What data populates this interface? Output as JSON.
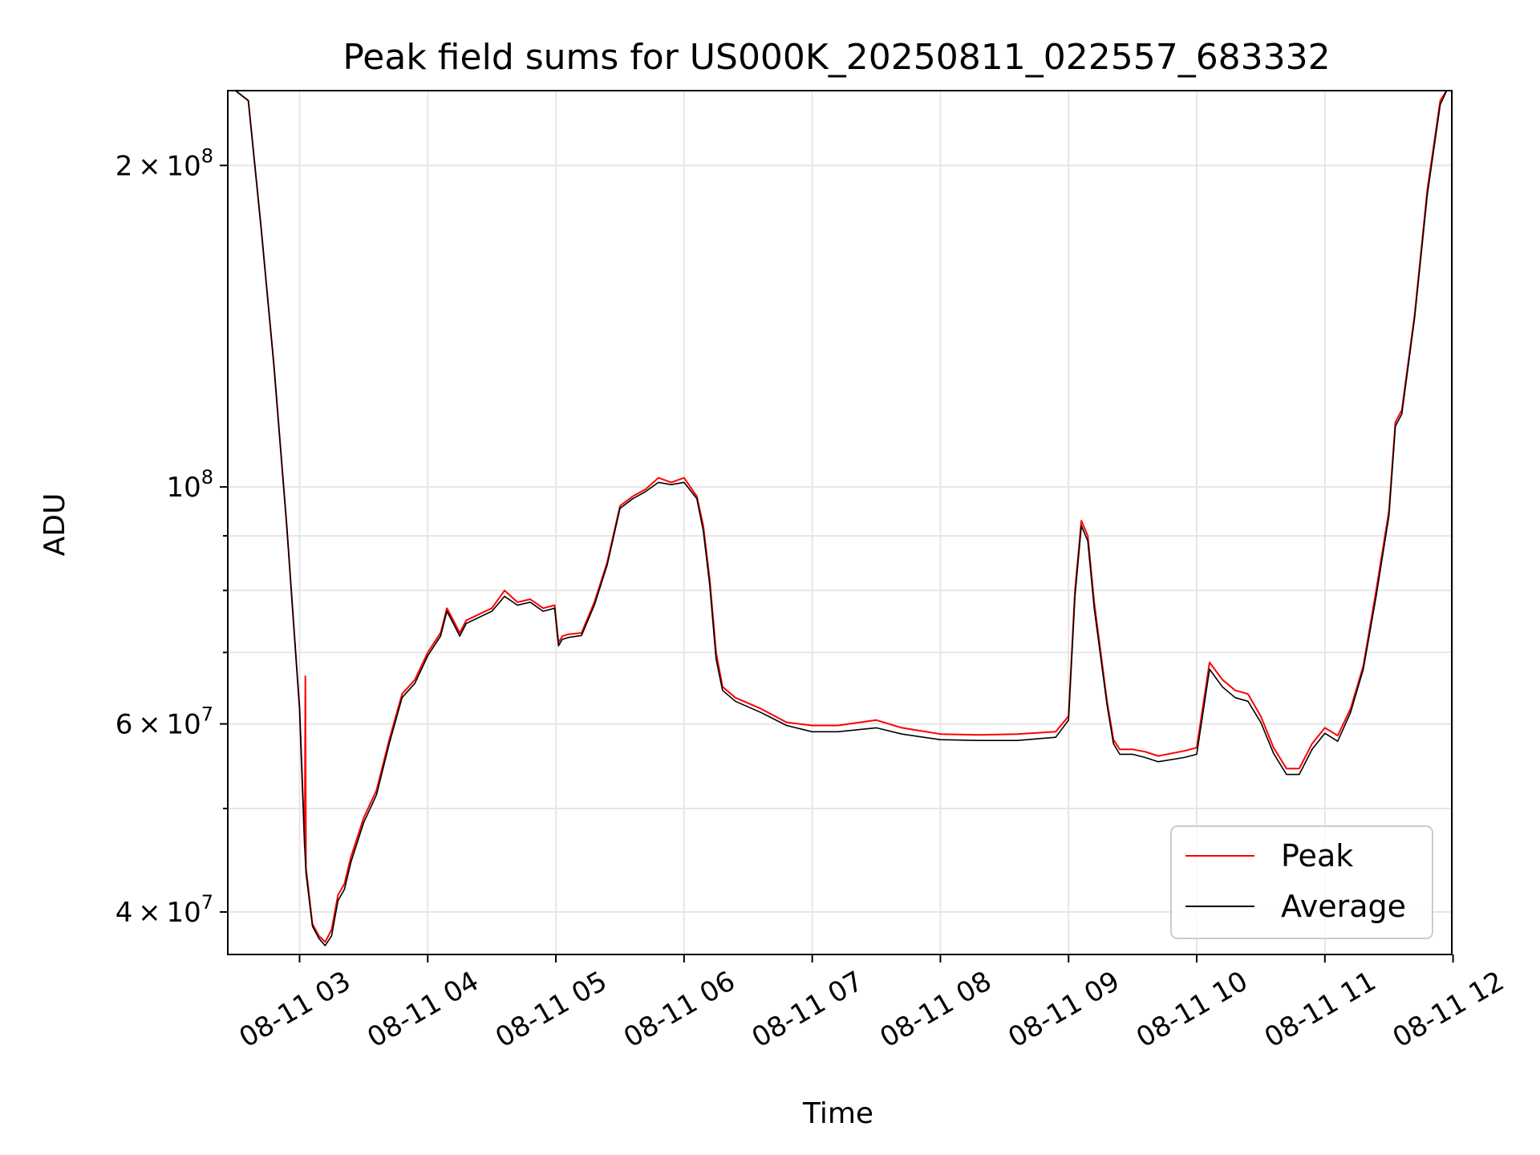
{
  "chart_data": {
    "type": "line",
    "title": "Peak field sums for US000K_20250811_022557_683332",
    "xlabel": "Time",
    "ylabel": "ADU",
    "yscale": "log",
    "xlim_hours": [
      2.44,
      11.99
    ],
    "ylim": [
      36500000,
      235000000
    ],
    "grid": true,
    "legend_position": "lower-right",
    "x_ticks": [
      {
        "value": 3,
        "label": "08-11 03"
      },
      {
        "value": 4,
        "label": "08-11 04"
      },
      {
        "value": 5,
        "label": "08-11 05"
      },
      {
        "value": 6,
        "label": "08-11 06"
      },
      {
        "value": 7,
        "label": "08-11 07"
      },
      {
        "value": 8,
        "label": "08-11 08"
      },
      {
        "value": 9,
        "label": "08-11 09"
      },
      {
        "value": 10,
        "label": "08-11 10"
      },
      {
        "value": 11,
        "label": "08-11 11"
      },
      {
        "value": 12,
        "label": "08-11 12"
      }
    ],
    "y_major_ticks": [
      {
        "value": 40000000,
        "mantissa": "4",
        "exp": "7"
      },
      {
        "value": 60000000,
        "mantissa": "6",
        "exp": "7"
      },
      {
        "value": 100000000,
        "mantissa": "",
        "exp": "8"
      },
      {
        "value": 200000000,
        "mantissa": "2",
        "exp": "8"
      }
    ],
    "y_minor_ticks": [
      50000000,
      70000000,
      80000000,
      90000000
    ],
    "series": [
      {
        "name": "Peak",
        "color": "#ff0000",
        "x": [
          2.5,
          2.6,
          2.7,
          2.8,
          2.9,
          3.0,
          3.04,
          3.045,
          3.05,
          3.1,
          3.15,
          3.2,
          3.25,
          3.3,
          3.35,
          3.4,
          3.5,
          3.6,
          3.7,
          3.8,
          3.9,
          4.0,
          4.1,
          4.15,
          4.2,
          4.25,
          4.3,
          4.4,
          4.5,
          4.6,
          4.7,
          4.8,
          4.9,
          4.99,
          5.02,
          5.05,
          5.1,
          5.2,
          5.3,
          5.4,
          5.5,
          5.6,
          5.7,
          5.8,
          5.9,
          6.0,
          6.1,
          6.15,
          6.2,
          6.25,
          6.3,
          6.4,
          6.6,
          6.8,
          7.0,
          7.2,
          7.5,
          7.7,
          8.0,
          8.3,
          8.6,
          8.9,
          9.0,
          9.05,
          9.1,
          9.15,
          9.2,
          9.3,
          9.35,
          9.4,
          9.5,
          9.6,
          9.7,
          9.9,
          10.0,
          10.1,
          10.2,
          10.3,
          10.4,
          10.5,
          10.6,
          10.7,
          10.8,
          10.9,
          11.0,
          11.1,
          11.2,
          11.3,
          11.4,
          11.5,
          11.55,
          11.6,
          11.7,
          11.8,
          11.9,
          11.95
        ],
        "y": [
          235000000,
          230000000,
          175000000,
          130000000,
          92000000,
          62000000,
          46000000,
          66500000,
          44000000,
          39000000,
          38000000,
          37500000,
          38500000,
          41500000,
          42500000,
          45000000,
          49000000,
          52000000,
          58000000,
          64000000,
          66000000,
          70000000,
          73000000,
          77000000,
          75000000,
          73000000,
          75000000,
          76000000,
          77000000,
          80000000,
          78000000,
          78500000,
          77000000,
          77500000,
          71500000,
          72500000,
          72800000,
          73000000,
          78000000,
          85000000,
          96000000,
          98000000,
          99500000,
          102000000,
          101000000,
          102000000,
          98000000,
          92000000,
          82000000,
          70000000,
          65000000,
          63500000,
          62000000,
          60200000,
          59800000,
          59800000,
          60500000,
          59500000,
          58700000,
          58600000,
          58700000,
          59000000,
          61000000,
          80000000,
          93000000,
          90000000,
          78000000,
          63000000,
          58000000,
          56800000,
          56800000,
          56500000,
          56000000,
          56600000,
          57000000,
          68500000,
          66000000,
          64500000,
          64000000,
          61000000,
          57000000,
          54500000,
          54500000,
          57500000,
          59500000,
          58500000,
          62000000,
          68000000,
          80000000,
          95000000,
          115000000,
          118000000,
          145000000,
          190000000,
          230000000,
          235000000
        ]
      },
      {
        "name": "Average",
        "color": "#000000",
        "x": [
          2.5,
          2.6,
          2.7,
          2.8,
          2.9,
          3.0,
          3.04,
          3.05,
          3.1,
          3.15,
          3.2,
          3.25,
          3.3,
          3.35,
          3.4,
          3.5,
          3.6,
          3.7,
          3.8,
          3.9,
          4.0,
          4.1,
          4.15,
          4.2,
          4.25,
          4.3,
          4.4,
          4.5,
          4.6,
          4.7,
          4.8,
          4.9,
          4.99,
          5.02,
          5.05,
          5.1,
          5.2,
          5.3,
          5.4,
          5.5,
          5.6,
          5.7,
          5.8,
          5.9,
          6.0,
          6.1,
          6.15,
          6.2,
          6.25,
          6.3,
          6.4,
          6.6,
          6.8,
          7.0,
          7.2,
          7.5,
          7.7,
          8.0,
          8.3,
          8.6,
          8.9,
          9.0,
          9.05,
          9.1,
          9.15,
          9.2,
          9.3,
          9.35,
          9.4,
          9.5,
          9.6,
          9.7,
          9.9,
          10.0,
          10.1,
          10.2,
          10.3,
          10.4,
          10.5,
          10.6,
          10.7,
          10.8,
          10.9,
          11.0,
          11.1,
          11.2,
          11.3,
          11.4,
          11.5,
          11.55,
          11.6,
          11.7,
          11.8,
          11.9,
          11.95
        ],
        "y": [
          235000000,
          230000000,
          175000000,
          130000000,
          92000000,
          62000000,
          46000000,
          43500000,
          38800000,
          37800000,
          37200000,
          38000000,
          41000000,
          42000000,
          44500000,
          48500000,
          51500000,
          57500000,
          63500000,
          65500000,
          69500000,
          72500000,
          76500000,
          74500000,
          72500000,
          74500000,
          75500000,
          76500000,
          79000000,
          77500000,
          78000000,
          76500000,
          77000000,
          71000000,
          72000000,
          72300000,
          72600000,
          77500000,
          84500000,
          95500000,
          97500000,
          99000000,
          101000000,
          100500000,
          101000000,
          97500000,
          91000000,
          81000000,
          69000000,
          64500000,
          63000000,
          61500000,
          59800000,
          59000000,
          59000000,
          59500000,
          58700000,
          58000000,
          57900000,
          57900000,
          58300000,
          60500000,
          79000000,
          92000000,
          89000000,
          77000000,
          62500000,
          57500000,
          56200000,
          56200000,
          55800000,
          55300000,
          55800000,
          56200000,
          67500000,
          65000000,
          63500000,
          63000000,
          60200000,
          56300000,
          53800000,
          53800000,
          56800000,
          58800000,
          57800000,
          61500000,
          67500000,
          79000000,
          94000000,
          114000000,
          117000000,
          144000000,
          188000000,
          228000000,
          235000000
        ]
      }
    ]
  }
}
